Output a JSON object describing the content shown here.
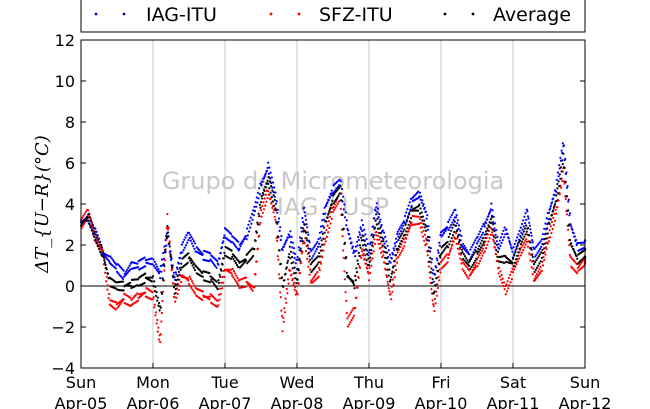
{
  "chart_data": {
    "type": "scatter",
    "ylabel": "ΔT_{U−R}(°C)",
    "ylim": [
      -4,
      12
    ],
    "yticks": [
      -4,
      -2,
      0,
      2,
      4,
      6,
      8,
      10,
      12
    ],
    "grid": "vertical-only",
    "zero_line": true,
    "x_tick_labels": [
      {
        "day": "Sun",
        "date": "Apr-05"
      },
      {
        "day": "Mon",
        "date": "Apr-06"
      },
      {
        "day": "Tue",
        "date": "Apr-07"
      },
      {
        "day": "Wed",
        "date": "Apr-08"
      },
      {
        "day": "Thu",
        "date": "Apr-09"
      },
      {
        "day": "Fri",
        "date": "Apr-10"
      },
      {
        "day": "Sat",
        "date": "Apr-11"
      },
      {
        "day": "Sun",
        "date": "Apr-12"
      }
    ],
    "legend_position": "top",
    "watermark": [
      "Grupo de Micrometeorologia",
      "IAG / USP"
    ],
    "series": [
      {
        "name": "IAG-ITU",
        "color": "#0000ff",
        "x_days": [
          0,
          0.1,
          0.2,
          0.3,
          0.4,
          0.5,
          0.6,
          0.7,
          0.8,
          0.9,
          1,
          1.1,
          1.2,
          1.3,
          1.4,
          1.5,
          1.6,
          1.7,
          1.8,
          1.9,
          2,
          2.1,
          2.2,
          2.3,
          2.4,
          2.5,
          2.6,
          2.7,
          2.8,
          2.9,
          3,
          3.1,
          3.2,
          3.3,
          3.4,
          3.5,
          3.6,
          3.7,
          3.8,
          3.9,
          4,
          4.1,
          4.2,
          4.3,
          4.4,
          4.5,
          4.6,
          4.7,
          4.8,
          4.9,
          5,
          5.1,
          5.2,
          5.3,
          5.4,
          5.5,
          5.6,
          5.7,
          5.8,
          5.9,
          6,
          6.1,
          6.2,
          6.3,
          6.4,
          6.5,
          6.6,
          6.7,
          6.8,
          6.9,
          7
        ],
        "values": [
          3.1,
          3.3,
          2.6,
          1.6,
          1.3,
          0.9,
          0.5,
          1.0,
          1.0,
          1.2,
          1.2,
          0.6,
          2.5,
          0.3,
          1.8,
          2.5,
          1.8,
          1.5,
          1.4,
          1.0,
          2.6,
          2.3,
          1.9,
          2.5,
          3.6,
          4.9,
          5.8,
          4.4,
          1.8,
          2.6,
          1.0,
          3.8,
          1.5,
          2.1,
          3.9,
          4.7,
          5.1,
          2.8,
          1.5,
          3.0,
          1.6,
          4.0,
          2.5,
          1.2,
          2.5,
          3.2,
          4.2,
          4.5,
          3.5,
          0.3,
          2.5,
          2.9,
          3.6,
          2.0,
          1.5,
          2.2,
          2.9,
          3.8,
          1.9,
          2.8,
          1.6,
          2.6,
          3.6,
          1.6,
          2.1,
          3.6,
          4.8,
          7.0,
          3.0,
          1.9,
          2.0
        ]
      },
      {
        "name": "SFZ-ITU",
        "color": "#ff0000",
        "x_days": [
          0,
          0.1,
          0.2,
          0.3,
          0.4,
          0.5,
          0.6,
          0.7,
          0.8,
          0.9,
          1,
          1.1,
          1.2,
          1.3,
          1.4,
          1.5,
          1.6,
          1.7,
          1.8,
          1.9,
          2,
          2.1,
          2.2,
          2.3,
          2.4,
          2.5,
          2.6,
          2.7,
          2.8,
          2.9,
          3,
          3.1,
          3.2,
          3.3,
          3.4,
          3.5,
          3.6,
          3.7,
          3.8,
          3.9,
          4,
          4.1,
          4.2,
          4.3,
          4.4,
          4.5,
          4.6,
          4.7,
          4.8,
          4.9,
          5,
          5.1,
          5.2,
          5.3,
          5.4,
          5.5,
          5.6,
          5.7,
          5.8,
          5.9,
          6,
          6.1,
          6.2,
          6.3,
          6.4,
          6.5,
          6.6,
          6.7,
          6.8,
          6.9,
          7
        ],
        "values": [
          3.0,
          3.6,
          2.3,
          1.7,
          -0.8,
          -1.0,
          -0.6,
          -0.8,
          -0.5,
          -0.3,
          -0.5,
          -2.8,
          3.3,
          -0.7,
          0.5,
          0.3,
          -0.3,
          -0.5,
          -0.6,
          -0.9,
          0.8,
          0.7,
          0.1,
          0.2,
          -0.2,
          3.5,
          4.6,
          3.4,
          -2.0,
          0.8,
          -0.5,
          2.5,
          0.2,
          0.6,
          2.4,
          3.7,
          4.4,
          -1.8,
          -1.2,
          1.8,
          0.5,
          2.6,
          1.4,
          -0.6,
          1.5,
          2.2,
          3.2,
          3.2,
          2.0,
          -1.2,
          1.0,
          1.4,
          2.5,
          1.0,
          0.5,
          1.1,
          1.8,
          2.8,
          0.8,
          -0.2,
          0.7,
          1.6,
          2.3,
          0.3,
          0.9,
          2.4,
          3.6,
          5.6,
          1.2,
          0.8,
          1.2
        ]
      },
      {
        "name": "Average",
        "color": "#000000",
        "x_days": [
          0,
          0.1,
          0.2,
          0.3,
          0.4,
          0.5,
          0.6,
          0.7,
          0.8,
          0.9,
          1,
          1.1,
          1.2,
          1.3,
          1.4,
          1.5,
          1.6,
          1.7,
          1.8,
          1.9,
          2,
          2.1,
          2.2,
          2.3,
          2.4,
          2.5,
          2.6,
          2.7,
          2.8,
          2.9,
          3,
          3.1,
          3.2,
          3.3,
          3.4,
          3.5,
          3.6,
          3.7,
          3.8,
          3.9,
          4,
          4.1,
          4.2,
          4.3,
          4.4,
          4.5,
          4.6,
          4.7,
          4.8,
          4.9,
          5,
          5.1,
          5.2,
          5.3,
          5.4,
          5.5,
          5.6,
          5.7,
          5.8,
          5.9,
          6,
          6.1,
          6.2,
          6.3,
          6.4,
          6.5,
          6.6,
          6.7,
          6.8,
          6.9,
          7
        ],
        "values": [
          3.0,
          3.4,
          2.4,
          1.6,
          0.2,
          0.0,
          0.0,
          0.1,
          0.2,
          0.4,
          0.3,
          -1.2,
          2.9,
          -0.2,
          1.1,
          1.4,
          0.8,
          0.5,
          0.4,
          0.0,
          1.7,
          1.5,
          1.0,
          1.3,
          1.7,
          4.2,
          5.2,
          3.9,
          -0.1,
          1.7,
          0.2,
          3.1,
          0.9,
          1.3,
          3.1,
          4.2,
          4.7,
          0.5,
          0.1,
          2.4,
          1.0,
          3.3,
          2.0,
          0.3,
          2.0,
          2.7,
          3.7,
          3.8,
          2.7,
          -0.4,
          1.7,
          2.1,
          3.0,
          1.5,
          1.0,
          1.6,
          2.3,
          3.3,
          1.3,
          1.3,
          1.1,
          2.1,
          2.9,
          0.9,
          1.5,
          3.0,
          4.2,
          6.3,
          2.1,
          1.3,
          1.6
        ]
      }
    ]
  }
}
